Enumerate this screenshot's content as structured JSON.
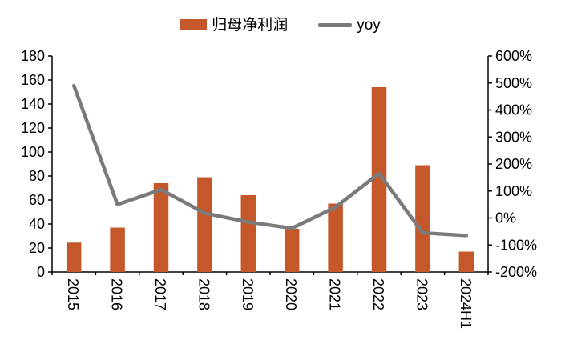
{
  "window": {
    "background": "#ffffff"
  },
  "legend": {
    "items": [
      {
        "label": "归母净利润",
        "marker": "bar",
        "color": "#c4582b"
      },
      {
        "label": "yoy",
        "marker": "line",
        "color": "#7a7a7a"
      }
    ]
  },
  "chart_data": {
    "type": "bar",
    "combo": "bar+line",
    "title": "",
    "categories": [
      "2015",
      "2016",
      "2017",
      "2018",
      "2019",
      "2020",
      "2021",
      "2022",
      "2023",
      "2024H1"
    ],
    "series": [
      {
        "name": "归母净利润",
        "type": "bar",
        "axis": "left",
        "color": "#c4582b",
        "values": [
          24.5,
          37,
          74,
          79,
          64,
          36,
          57,
          154,
          89,
          17
        ]
      },
      {
        "name": "yoy",
        "type": "line",
        "axis": "right",
        "color": "#7a7a7a",
        "values_pct": [
          490,
          50,
          105,
          18,
          -15,
          -38,
          40,
          165,
          -55,
          -65
        ]
      }
    ],
    "left_axis": {
      "min": 0,
      "max": 180,
      "step": 20,
      "tick_labels": [
        "0",
        "20",
        "40",
        "60",
        "80",
        "100",
        "120",
        "140",
        "160",
        "180"
      ]
    },
    "right_axis": {
      "min": -200,
      "max": 600,
      "step": 100,
      "tick_labels": [
        "-200%",
        "-100%",
        "0%",
        "100%",
        "200%",
        "300%",
        "400%",
        "500%",
        "600%"
      ]
    },
    "grid": false,
    "legend_position": "top",
    "x_label_rotation_deg": 90
  }
}
